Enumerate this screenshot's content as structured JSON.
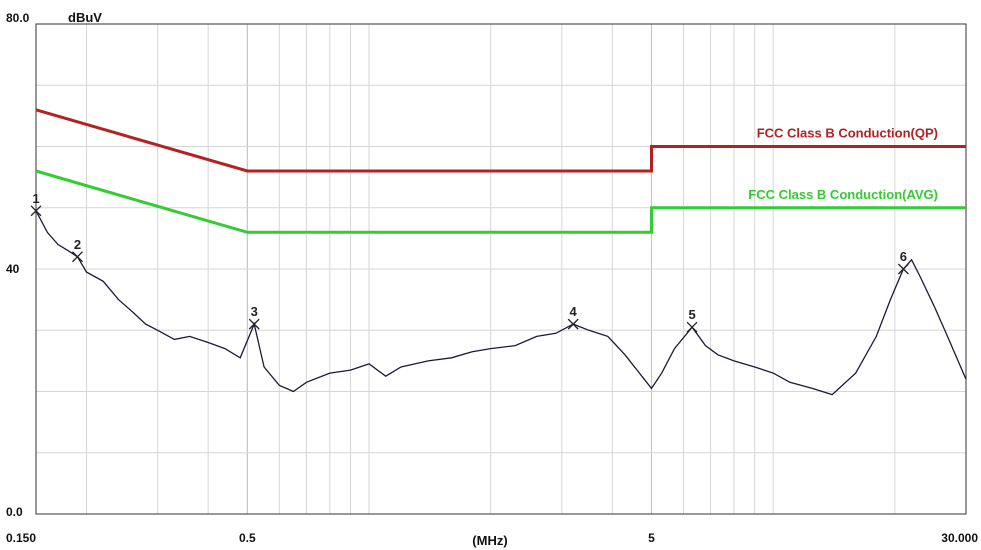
{
  "chart_data": {
    "type": "line",
    "title": "",
    "unit_label": "dBuV",
    "xlabel": "(MHz)",
    "ylabel": "dBuV",
    "x_scale": "log",
    "xlim": [
      0.15,
      30
    ],
    "ylim": [
      0,
      80
    ],
    "x_ticks": [
      {
        "value": 0.15,
        "label": "0.150"
      },
      {
        "value": 0.5,
        "label": "0.5"
      },
      {
        "value": 5,
        "label": "5"
      },
      {
        "value": 30,
        "label": "30.000"
      }
    ],
    "y_ticks": [
      {
        "value": 80,
        "label": "80.0"
      },
      {
        "value": 40,
        "label": "40"
      },
      {
        "value": 0,
        "label": "0.0"
      }
    ],
    "grid": true,
    "series": [
      {
        "name": "FCC Class B Conduction(QP)",
        "color": "#b22222",
        "x": [
          0.15,
          0.5,
          0.5,
          5,
          5,
          30
        ],
        "y": [
          66,
          56,
          56,
          56,
          60,
          60
        ]
      },
      {
        "name": "FCC Class B Conduction(AVG)",
        "color": "#33cc33",
        "x": [
          0.15,
          0.5,
          0.5,
          5,
          5,
          30
        ],
        "y": [
          56,
          46,
          46,
          46,
          50,
          50
        ]
      },
      {
        "name": "",
        "color": "#1a1a3a",
        "x": [
          0.15,
          0.16,
          0.17,
          0.18,
          0.19,
          0.2,
          0.22,
          0.24,
          0.26,
          0.28,
          0.3,
          0.33,
          0.36,
          0.4,
          0.44,
          0.48,
          0.52,
          0.55,
          0.6,
          0.65,
          0.7,
          0.8,
          0.9,
          1.0,
          1.1,
          1.2,
          1.4,
          1.6,
          1.8,
          2.0,
          2.3,
          2.6,
          2.9,
          3.2,
          3.5,
          3.9,
          4.3,
          4.8,
          5.0,
          5.3,
          5.7,
          6.3,
          6.8,
          7.3,
          8.0,
          9.0,
          10.0,
          11.0,
          12.5,
          14.0,
          16.0,
          18.0,
          19.5,
          21.0,
          22.0,
          23.0,
          25.0,
          27.0,
          30.0
        ],
        "y": [
          49.5,
          46,
          44,
          43,
          42,
          39.5,
          38,
          35,
          33,
          31,
          30,
          28.5,
          29,
          28,
          27,
          25.5,
          31,
          24,
          21,
          20,
          21.5,
          23,
          23.5,
          24.5,
          22.5,
          24,
          25,
          25.5,
          26.5,
          27,
          27.5,
          29,
          29.5,
          31,
          30,
          29,
          26,
          22,
          20.5,
          23,
          27,
          30.5,
          27.5,
          26,
          25,
          24,
          23,
          21.5,
          20.5,
          19.5,
          23,
          29,
          35,
          40,
          41.5,
          39,
          34,
          29,
          22
        ]
      }
    ],
    "markers": [
      {
        "label": "1",
        "x": 0.15,
        "y": 49.5
      },
      {
        "label": "2",
        "x": 0.19,
        "y": 42
      },
      {
        "label": "3",
        "x": 0.52,
        "y": 31
      },
      {
        "label": "4",
        "x": 3.2,
        "y": 31
      },
      {
        "label": "5",
        "x": 6.3,
        "y": 30.5
      },
      {
        "label": "6",
        "x": 21.0,
        "y": 40
      }
    ]
  }
}
